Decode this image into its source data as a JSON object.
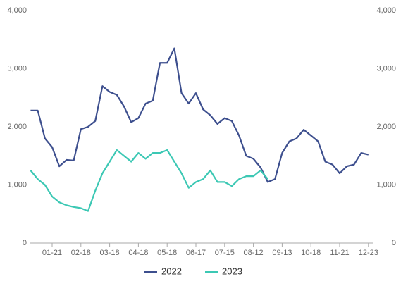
{
  "chart_data": {
    "type": "line",
    "categories": [
      null,
      null,
      null,
      "01-21",
      null,
      null,
      null,
      "02-18",
      null,
      null,
      null,
      "03-18",
      null,
      null,
      null,
      "04-18",
      null,
      null,
      null,
      "05-18",
      null,
      null,
      null,
      "06-17",
      null,
      null,
      null,
      "07-15",
      null,
      null,
      null,
      "08-12",
      null,
      null,
      null,
      "09-13",
      null,
      null,
      null,
      "10-18",
      null,
      null,
      null,
      "11-21",
      null,
      null,
      null,
      "12-23"
    ],
    "series": [
      {
        "name": "2022",
        "color": "#3d4f8e",
        "values": [
          2280,
          2280,
          1800,
          1650,
          1320,
          1430,
          1420,
          1960,
          2000,
          2100,
          2700,
          2600,
          2550,
          2350,
          2080,
          2150,
          2400,
          2450,
          3100,
          3100,
          3350,
          2580,
          2400,
          2580,
          2300,
          2200,
          2050,
          2150,
          2100,
          1850,
          1500,
          1450,
          1300,
          1050,
          1100,
          1550,
          1750,
          1800,
          1950,
          1850,
          1750,
          1400,
          1350,
          1200,
          1320,
          1350,
          1550,
          1520
        ]
      },
      {
        "name": "2023",
        "color": "#3cc8b4",
        "values": [
          1250,
          1100,
          1000,
          800,
          700,
          650,
          620,
          600,
          550,
          900,
          1200,
          1400,
          1600,
          1500,
          1400,
          1550,
          1450,
          1550,
          1550,
          1600,
          1400,
          1200,
          950,
          1050,
          1100,
          1250,
          1050,
          1050,
          980,
          1100,
          1150,
          1150,
          1250,
          1100,
          null,
          null,
          null,
          null,
          null,
          null,
          null,
          null,
          null,
          null,
          null,
          null,
          null,
          null
        ]
      }
    ],
    "ylim": [
      0,
      4000
    ],
    "yticks": [
      0,
      {
        "value": 1000,
        "label": "1,000"
      },
      {
        "value": 2000,
        "label": "2,000"
      },
      {
        "value": 3000,
        "label": "3,000"
      },
      {
        "value": 4000,
        "label": "4,000"
      }
    ],
    "y2lim": [
      0,
      4000
    ],
    "y2ticks": [
      0,
      {
        "value": 1000,
        "label": "1,000"
      },
      {
        "value": 2000,
        "label": "2,000"
      },
      {
        "value": 3000,
        "label": "3,000"
      },
      {
        "value": 4000,
        "label": "4,000"
      }
    ],
    "legend": "bottom"
  }
}
